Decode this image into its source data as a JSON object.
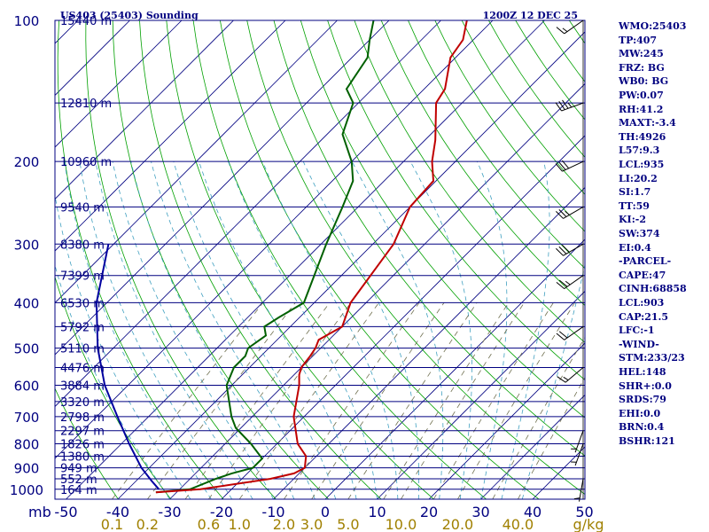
{
  "title_left": "US403 (25403) Sounding",
  "title_right": "1200Z 12 DEC 25",
  "stats": [
    "WMO:25403",
    "TP:407",
    "MW:245",
    "FRZ: BG",
    "WB0: BG",
    "PW:0.07",
    "RH:41.2",
    "MAXT:-3.4",
    "TH:4926",
    "L57:9.3",
    "LCL:935",
    "LI:20.2",
    "SI:1.7",
    "TT:59",
    "KI:-2",
    "SW:374",
    "EI:0.4",
    "-PARCEL-",
    "CAPE:47",
    "CINH:68858",
    "LCL:903",
    "CAP:21.5",
    "LFC:-1",
    "-WIND-",
    "STM:233/23",
    "HEL:148",
    "SHR+:0.0",
    "SRDS:79",
    "EHI:0.0",
    "BRN:0.4",
    "BSHR:121"
  ],
  "colors": {
    "isobar": "#000080",
    "frame": "#000080",
    "isotherm": "#000080",
    "dry_adiabat": "#00a000",
    "moist_adiabat": "#40a0c0",
    "mixing_ratio": "#707050",
    "temperature": "#c00000",
    "dewpoint": "#006000",
    "parcel": "#0000a0",
    "wind": "#000000"
  },
  "chart_data": {
    "type": "skew-t",
    "pressure_axis_label": "mb",
    "pressure_ticks": [
      "100",
      "200",
      "300",
      "400",
      "500",
      "600",
      "700",
      "800",
      "900",
      "1000"
    ],
    "height_labels": [
      {
        "p": 100,
        "label": "15440 m"
      },
      {
        "p": 150,
        "label": "12810 m"
      },
      {
        "p": 200,
        "label": "10960 m"
      },
      {
        "p": 250,
        "label": "9540 m"
      },
      {
        "p": 300,
        "label": "8380 m"
      },
      {
        "p": 350,
        "label": "7399 m"
      },
      {
        "p": 400,
        "label": "6530 m"
      },
      {
        "p": 450,
        "label": "5792 m"
      },
      {
        "p": 500,
        "label": "5110 m"
      },
      {
        "p": 550,
        "label": "4476 m"
      },
      {
        "p": 600,
        "label": "3884 m"
      },
      {
        "p": 650,
        "label": "3320 m"
      },
      {
        "p": 700,
        "label": "2798 m"
      },
      {
        "p": 750,
        "label": "2297 m"
      },
      {
        "p": 800,
        "label": "1826 m"
      },
      {
        "p": 850,
        "label": "1380 m"
      },
      {
        "p": 900,
        "label": "949 m"
      },
      {
        "p": 950,
        "label": "552 m"
      },
      {
        "p": 1000,
        "label": "164 m"
      }
    ],
    "temperature_ticks": [
      "-50",
      "-40",
      "-30",
      "-20",
      "-10",
      "0",
      "10",
      "20",
      "30",
      "40",
      "50"
    ],
    "mixing_ratio_ticks": [
      "0.1",
      "0.2",
      "0.6",
      "1.0",
      "2.0",
      "3.0",
      "5.0",
      "10.0",
      "20.0",
      "40.0"
    ],
    "mixing_ratio_unit": "g/kg",
    "temperature_profile": [
      [
        1015,
        -34
      ],
      [
        1000,
        -26
      ],
      [
        950,
        -14.5
      ],
      [
        925,
        -11
      ],
      [
        900,
        -10
      ],
      [
        850,
        -12
      ],
      [
        800,
        -16
      ],
      [
        700,
        -22
      ],
      [
        600,
        -27
      ],
      [
        570,
        -29
      ],
      [
        550,
        -30
      ],
      [
        520,
        -30.5
      ],
      [
        500,
        -31
      ],
      [
        480,
        -32
      ],
      [
        450,
        -30
      ],
      [
        400,
        -33
      ],
      [
        300,
        -36
      ],
      [
        250,
        -40
      ],
      [
        220,
        -40.5
      ],
      [
        200,
        -44.5
      ],
      [
        180,
        -48
      ],
      [
        150,
        -55
      ],
      [
        140,
        -56
      ],
      [
        120,
        -61
      ],
      [
        110,
        -62
      ],
      [
        100,
        -65
      ]
    ],
    "dewpoint_profile": [
      [
        1015,
        -34
      ],
      [
        1000,
        -28
      ],
      [
        950,
        -25
      ],
      [
        925,
        -23
      ],
      [
        900,
        -20
      ],
      [
        860,
        -20
      ],
      [
        800,
        -25
      ],
      [
        740,
        -31
      ],
      [
        700,
        -34
      ],
      [
        600,
        -41
      ],
      [
        550,
        -43
      ],
      [
        520,
        -43
      ],
      [
        500,
        -44
      ],
      [
        470,
        -43
      ],
      [
        450,
        -45
      ],
      [
        430,
        -44
      ],
      [
        400,
        -42
      ],
      [
        300,
        -49
      ],
      [
        250,
        -53
      ],
      [
        220,
        -56
      ],
      [
        200,
        -60
      ],
      [
        175,
        -67
      ],
      [
        150,
        -71
      ],
      [
        140,
        -75
      ],
      [
        120,
        -77
      ],
      [
        110,
        -80
      ],
      [
        100,
        -83
      ]
    ],
    "parcel_profile": [
      [
        1000,
        -34
      ],
      [
        960,
        -37
      ],
      [
        900,
        -41.5
      ],
      [
        800,
        -48.5
      ],
      [
        700,
        -56
      ],
      [
        600,
        -64.5
      ],
      [
        500,
        -73
      ],
      [
        400,
        -82
      ],
      [
        300,
        -91
      ]
    ],
    "wind_barbs": [
      {
        "p": 100,
        "dir": 235,
        "kt": 15
      },
      {
        "p": 150,
        "dir": 250,
        "kt": 35
      },
      {
        "p": 200,
        "dir": 245,
        "kt": 30
      },
      {
        "p": 250,
        "dir": 240,
        "kt": 25
      },
      {
        "p": 300,
        "dir": 240,
        "kt": 30
      },
      {
        "p": 350,
        "dir": 235,
        "kt": 25
      },
      {
        "p": 450,
        "dir": 235,
        "kt": 20
      },
      {
        "p": 550,
        "dir": 230,
        "kt": 15
      },
      {
        "p": 750,
        "dir": 200,
        "kt": 5
      },
      {
        "p": 800,
        "dir": 200,
        "kt": 5
      },
      {
        "p": 950,
        "dir": 190,
        "kt": 5
      }
    ]
  }
}
